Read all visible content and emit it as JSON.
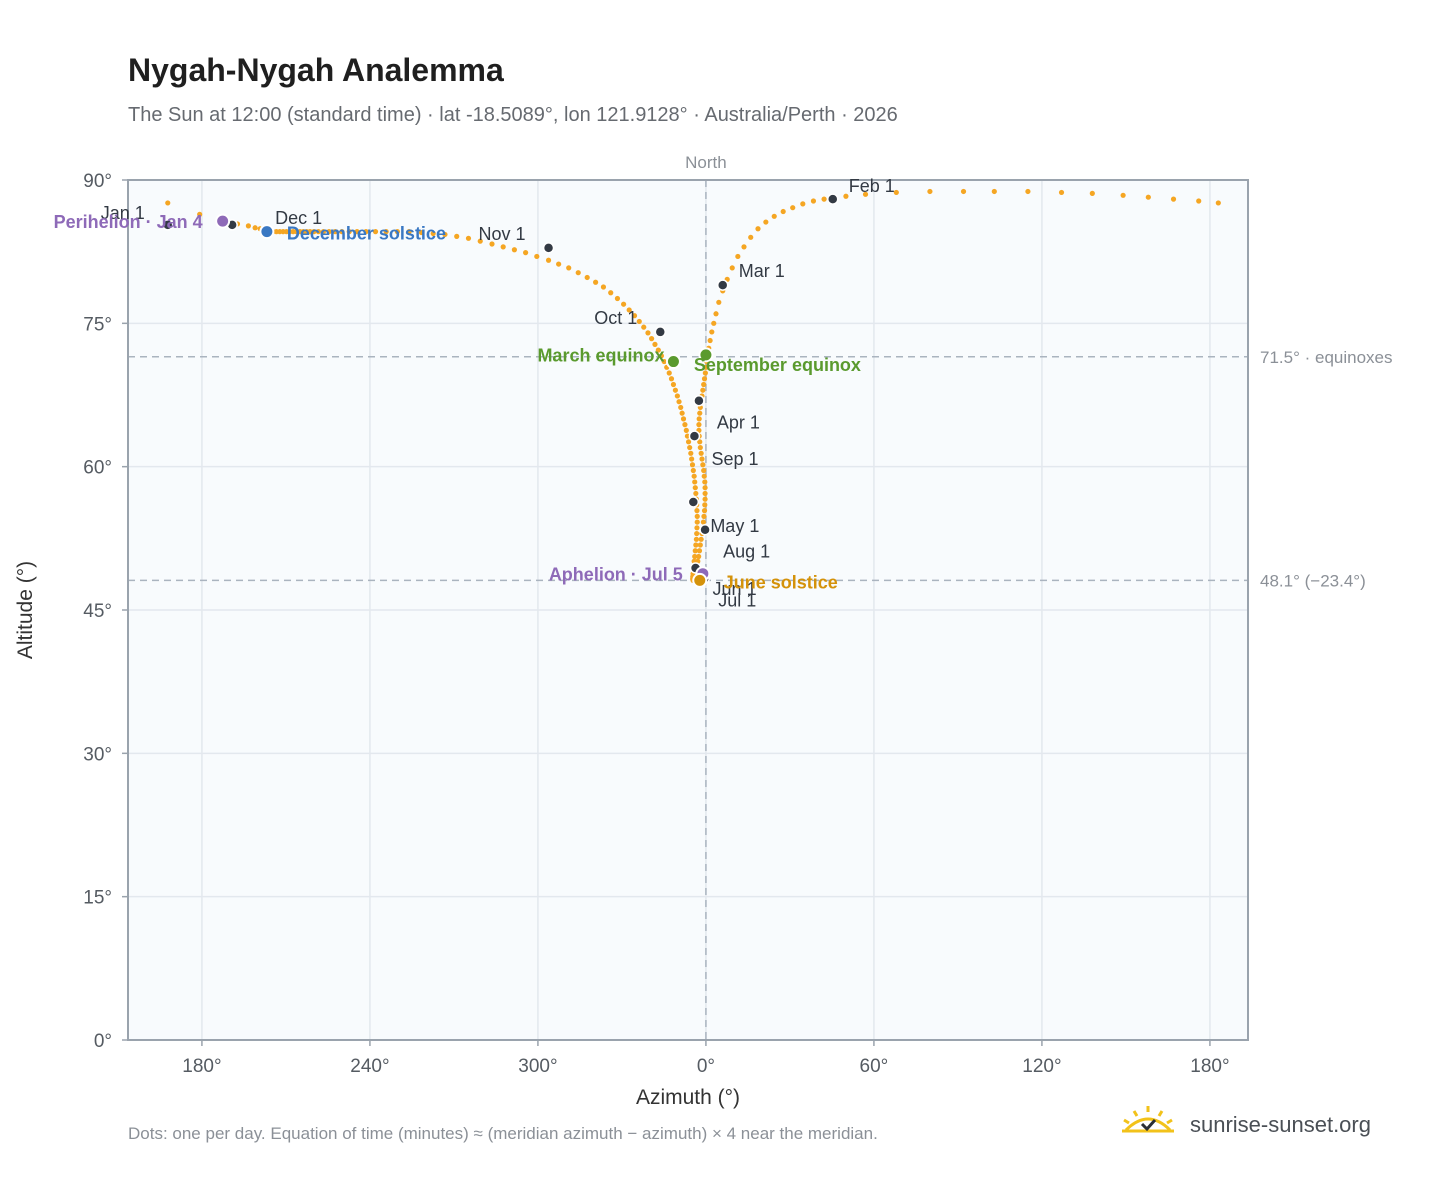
{
  "title": "Nygah-Nygah Analemma",
  "subtitle": "The Sun at 12:00 (standard time) · lat -18.5089°, lon 121.9128° · Australia/Perth · 2026",
  "footnote": "Dots: one per day. Equation of time (minutes) ≈ (meridian azimuth − azimuth) × 4 near the meridian.",
  "brand": "sunrise-sunset.org",
  "colors": {
    "curve": "#f5a623",
    "month_dot": "#333a44",
    "perihelion": "#8e6ab8",
    "aphelion": "#8e6ab8",
    "december_solstice": "#3a78c3",
    "june_solstice": "#d4920a",
    "equinox": "#5a9a2e",
    "plot_bg": "#f8fbfd",
    "grid": "#e3e8ee",
    "axis": "#9aa3ad",
    "ref_line": "#aab4bf"
  },
  "chart_data": {
    "type": "scatter",
    "title": "Nygah-Nygah Analemma",
    "xlabel": "Azimuth (°)",
    "ylabel": "Altitude (°)",
    "xlim": [
      150,
      190
    ],
    "ylim": [
      0,
      90
    ],
    "x_axis_note": "Azimuth is unwrapped around North (0° at the meridian); tick labels wrap modulo 360.",
    "xticks": [
      {
        "value": 180,
        "label": "180°"
      },
      {
        "value": 240,
        "label": "240°"
      },
      {
        "value": 300,
        "label": "300°"
      },
      {
        "value": 360,
        "label": "0°"
      },
      {
        "value": 420,
        "label": "60°"
      },
      {
        "value": 480,
        "label": "120°"
      },
      {
        "value": 540,
        "label": "180°"
      }
    ],
    "yticks": [
      {
        "value": 0,
        "label": "0°"
      },
      {
        "value": 15,
        "label": "15°"
      },
      {
        "value": 30,
        "label": "30°"
      },
      {
        "value": 45,
        "label": "45°"
      },
      {
        "value": 60,
        "label": "60°"
      },
      {
        "value": 75,
        "label": "75°"
      },
      {
        "value": 90,
        "label": "90°"
      }
    ],
    "grid": true,
    "meridian": {
      "value": 360,
      "label": "North"
    },
    "reference_lines": [
      {
        "value": 71.5,
        "label": "71.5° · equinoxes"
      },
      {
        "value": 48.1,
        "label": "48.1° (−23.4°)"
      }
    ],
    "months": [
      {
        "label": "Jan 1",
        "az": 167.8,
        "alt": 85.3,
        "lx": -67,
        "ly": -12
      },
      {
        "label": "Feb 1",
        "az": 405.3,
        "alt": 88.0,
        "lx": 16,
        "ly": -13
      },
      {
        "label": "Mar 1",
        "az": 366.0,
        "alt": 79.0,
        "lx": 16,
        "ly": -14
      },
      {
        "label": "Apr 1",
        "az": 357.5,
        "alt": 66.9,
        "lx": 18,
        "ly": 22
      },
      {
        "label": "May 1",
        "az": 355.5,
        "alt": 56.3,
        "lx": 17,
        "ly": 24
      },
      {
        "label": "Jun 1",
        "az": 356.3,
        "alt": 49.4,
        "lx": 17,
        "ly": 21
      },
      {
        "label": "Jul 1",
        "az": 359.4,
        "alt": 48.3,
        "lx": 14,
        "ly": 22
      },
      {
        "label": "Aug 1",
        "az": 359.7,
        "alt": 53.4,
        "lx": 18,
        "ly": 22
      },
      {
        "label": "Sep 1",
        "az": 355.9,
        "alt": 63.2,
        "lx": 17,
        "ly": 23
      },
      {
        "label": "Oct 1",
        "az": 343.7,
        "alt": 74.1,
        "lx": -66,
        "ly": -14
      },
      {
        "label": "Nov 1",
        "az": 303.8,
        "alt": 82.9,
        "lx": -70,
        "ly": -14
      },
      {
        "label": "Dec 1",
        "az": 190.8,
        "alt": 85.3,
        "lx": 43,
        "ly": -7
      }
    ],
    "events": [
      {
        "label": "Perihelion · Jan 4",
        "az": 187.4,
        "alt": 85.7,
        "color": "#8e6ab8",
        "lx": -20,
        "ly": 7,
        "anchor": "end"
      },
      {
        "label": "December solstice",
        "az": 203.2,
        "alt": 84.6,
        "color": "#3a78c3",
        "lx": 20,
        "ly": 8,
        "anchor": "start"
      },
      {
        "label": "March equinox",
        "az": 348.4,
        "alt": 71.0,
        "color": "#5a9a2e",
        "lx": -136,
        "ly": 0,
        "anchor": "start"
      },
      {
        "label": "September equinox",
        "az": 360.0,
        "alt": 71.7,
        "color": "#5a9a2e",
        "lx": -12,
        "ly": 16,
        "anchor": "start"
      },
      {
        "label": "Aphelion · Jul 5",
        "az": 358.9,
        "alt": 48.8,
        "color": "#8e6ab8",
        "lx": -20,
        "ly": 7,
        "anchor": "end"
      },
      {
        "label": "June solstice",
        "az": 357.8,
        "alt": 48.1,
        "color": "#d4920a",
        "lx": 24,
        "ly": 8,
        "anchor": "start"
      }
    ],
    "curve_az": [
      167.8,
      179.2,
      187.4,
      192.7,
      196.6,
      199.0,
      200.8,
      202.4,
      203.9,
      205.3,
      206.6,
      207.8,
      209.0,
      210.2,
      211.4,
      212.6,
      213.8,
      215.0,
      216.2,
      217.4,
      218.6,
      220.0,
      221.6,
      223.4,
      225.4,
      227.6,
      230.0,
      232.6,
      235.4,
      238.6,
      242.0,
      245.8,
      249.8,
      254.0,
      258.4,
      262.6,
      266.8,
      271.0,
      275.2,
      279.4,
      283.6,
      287.6,
      291.6,
      295.6,
      299.6,
      303.8,
      307.4,
      311.0,
      314.4,
      317.6,
      320.6,
      323.4,
      326.0,
      328.4,
      330.6,
      332.6,
      334.5,
      336.2,
      337.8,
      339.3,
      340.6,
      341.8,
      343.0,
      344.1,
      345.1,
      346.0,
      346.9,
      347.7,
      348.4,
      349.1,
      349.8,
      350.4,
      351.0,
      351.5,
      352.0,
      352.5,
      353.0,
      353.4,
      353.8,
      354.2,
      354.6,
      354.9,
      355.2,
      355.5,
      355.8,
      356.0,
      356.2,
      356.4,
      356.6,
      356.7,
      356.8,
      356.9,
      356.9,
      356.8,
      356.7,
      356.6,
      356.4,
      356.2,
      356.0,
      355.8,
      355.6,
      355.5,
      355.4,
      355.3,
      355.3,
      355.3,
      355.4,
      355.5,
      355.7,
      355.9,
      356.1,
      356.3,
      356.5,
      356.8,
      357.1,
      357.4,
      357.7,
      358.0,
      358.3,
      358.6,
      358.9,
      359.1,
      359.3,
      359.5,
      359.6,
      359.7,
      359.7,
      359.7,
      359.6,
      359.4,
      359.2,
      358.9,
      358.6,
      358.3,
      358.0,
      357.8,
      357.6,
      357.5,
      357.5,
      357.6,
      357.8,
      358.0,
      358.3,
      358.6,
      358.9,
      359.2,
      359.5,
      359.8,
      360.0,
      360.3,
      360.6,
      361.0,
      361.5,
      362.1,
      362.8,
      363.6,
      364.6,
      366.0,
      367.6,
      369.4,
      371.4,
      373.6,
      376.0,
      378.6,
      381.4,
      384.4,
      387.6,
      391.0,
      394.6,
      398.4,
      402.2,
      405.3,
      410.0,
      417.0,
      428.0,
      440.0,
      452.0,
      463.0,
      475.0,
      487.0,
      498.0,
      509.0,
      518.0,
      527.0,
      536.0,
      543.0
    ],
    "curve_alt": [
      87.6,
      86.4,
      85.7,
      85.4,
      85.2,
      85.0,
      84.9,
      84.8,
      84.7,
      84.6,
      84.6,
      84.6,
      84.6,
      84.6,
      84.6,
      84.6,
      84.6,
      84.6,
      84.6,
      84.6,
      84.6,
      84.6,
      84.6,
      84.6,
      84.6,
      84.6,
      84.6,
      84.6,
      84.6,
      84.6,
      84.6,
      84.6,
      84.6,
      84.6,
      84.5,
      84.4,
      84.3,
      84.1,
      83.9,
      83.6,
      83.3,
      83.0,
      82.7,
      82.4,
      82.0,
      81.6,
      81.2,
      80.8,
      80.3,
      79.8,
      79.3,
      78.8,
      78.2,
      77.6,
      77.0,
      76.4,
      75.8,
      75.2,
      74.6,
      74.0,
      73.4,
      72.8,
      72.2,
      71.6,
      71.0,
      70.4,
      69.8,
      69.2,
      68.6,
      68.0,
      67.4,
      66.8,
      66.2,
      65.6,
      65.0,
      64.4,
      63.8,
      63.2,
      62.6,
      62.0,
      61.4,
      60.8,
      60.2,
      59.6,
      59.0,
      58.4,
      57.8,
      57.2,
      56.6,
      56.0,
      55.4,
      54.8,
      54.2,
      53.6,
      53.0,
      52.4,
      51.8,
      51.2,
      50.6,
      50.1,
      49.6,
      49.2,
      48.8,
      48.5,
      48.3,
      48.2,
      48.1,
      48.1,
      48.2,
      48.3,
      48.5,
      48.8,
      49.2,
      49.6,
      50.1,
      50.6,
      51.2,
      51.8,
      52.4,
      53.0,
      53.6,
      54.2,
      54.8,
      55.4,
      56.0,
      56.6,
      57.2,
      57.8,
      58.4,
      59.0,
      59.6,
      60.2,
      60.8,
      61.4,
      62.0,
      62.6,
      63.2,
      63.8,
      64.4,
      65.0,
      65.6,
      66.2,
      66.8,
      67.4,
      68.0,
      68.6,
      69.2,
      69.8,
      70.4,
      71.0,
      71.7,
      72.4,
      73.2,
      74.1,
      75.0,
      76.0,
      77.2,
      78.4,
      79.6,
      80.8,
      82.0,
      83.0,
      84.0,
      84.9,
      85.6,
      86.2,
      86.7,
      87.1,
      87.5,
      87.8,
      88.0,
      88.0,
      88.3,
      88.5,
      88.7,
      88.8,
      88.8,
      88.8,
      88.8,
      88.7,
      88.6,
      88.4,
      88.2,
      88.0,
      87.8,
      87.6
    ]
  }
}
